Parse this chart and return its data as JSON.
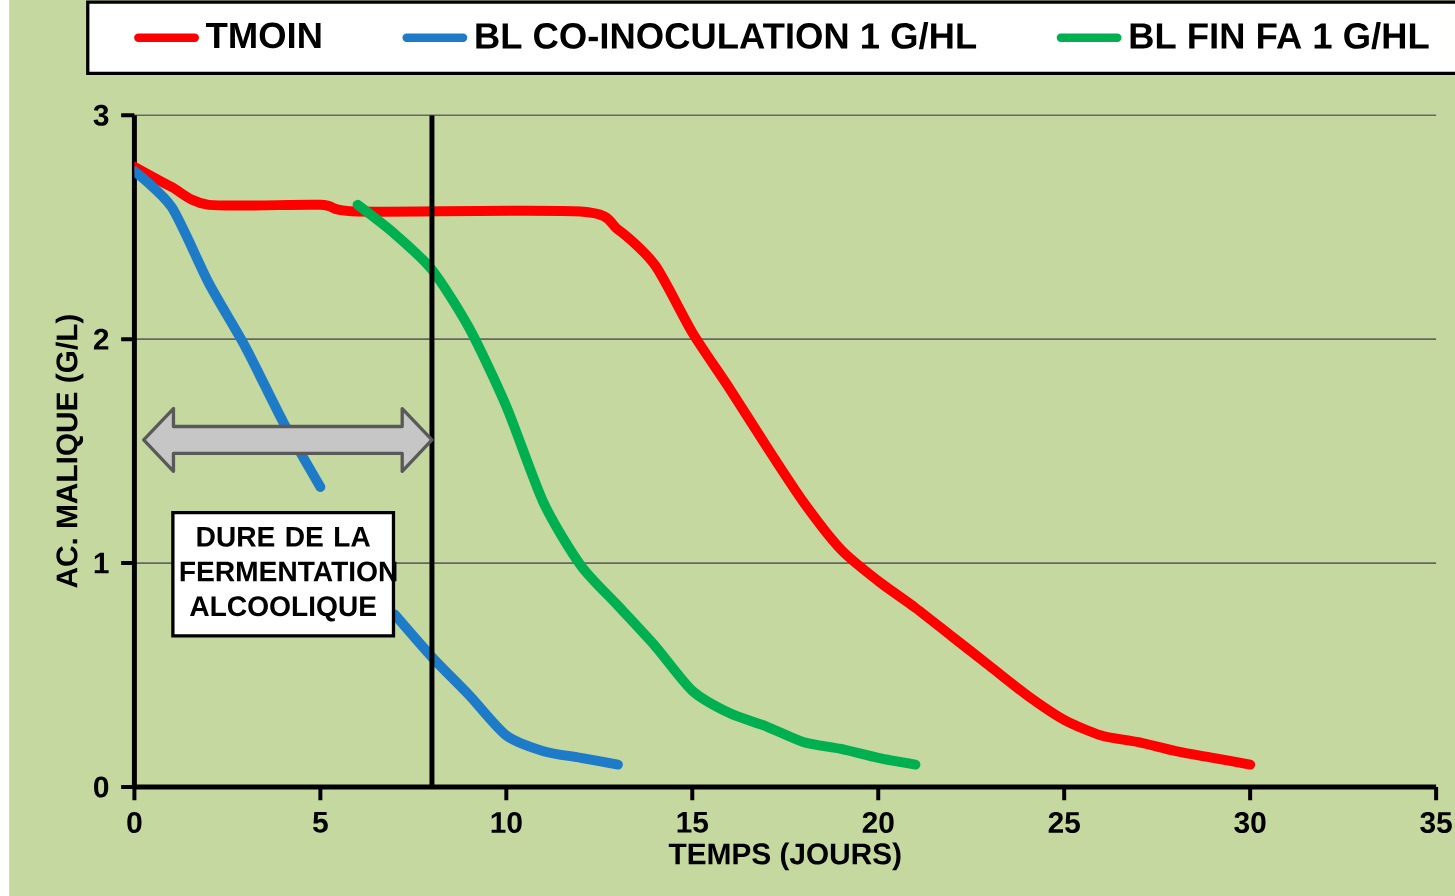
{
  "chart_data": {
    "type": "line",
    "xlabel": "TEMPS (JOURS)",
    "ylabel": "AC. MALIQUE (G/L)",
    "xlim": [
      0,
      35
    ],
    "ylim": [
      0,
      3
    ],
    "xticks": [
      0,
      5,
      10,
      15,
      20,
      25,
      30,
      35
    ],
    "yticks": [
      0,
      1,
      2,
      3
    ],
    "grid": "y",
    "legend": "top",
    "marker": "none",
    "line_style": "solid",
    "series": [
      {
        "name": "TMOIN",
        "color": "#ff0000",
        "x": [
          0,
          1,
          2,
          5,
          6,
          12,
          13,
          14,
          15,
          16,
          17,
          18,
          19,
          20,
          21,
          22,
          23,
          24,
          25,
          26,
          27,
          28,
          29,
          30
        ],
        "values": [
          2.77,
          2.68,
          2.6,
          2.6,
          2.57,
          2.57,
          2.49,
          2.33,
          2.03,
          1.78,
          1.52,
          1.27,
          1.06,
          0.92,
          0.8,
          0.67,
          0.54,
          0.41,
          0.3,
          0.23,
          0.2,
          0.16,
          0.13,
          0.1
        ]
      },
      {
        "name": "BL CO-INOCULATION  1 G/HL",
        "color": "#1e7bc8",
        "x": [
          0,
          1,
          2,
          3,
          4,
          5,
          6,
          7,
          8,
          9,
          10,
          11,
          12,
          13
        ],
        "values": [
          2.75,
          2.59,
          2.25,
          1.96,
          1.63,
          1.34,
          null,
          0.77,
          0.58,
          0.41,
          0.23,
          0.16,
          0.13,
          0.1
        ]
      },
      {
        "name": "BL FIN FA  1 G/HL",
        "color": "#00b050",
        "x": [
          6,
          7,
          8,
          9,
          10,
          11,
          12,
          13,
          14,
          15,
          16,
          17,
          18,
          19,
          20,
          21
        ],
        "values": [
          2.6,
          2.47,
          2.31,
          2.05,
          1.7,
          1.27,
          0.99,
          0.81,
          0.63,
          0.43,
          0.33,
          0.27,
          0.2,
          0.17,
          0.13,
          0.1
        ]
      }
    ],
    "ref_lines": [
      {
        "axis": "x",
        "value": 8,
        "color": "#000000"
      }
    ],
    "annotations": [
      "DURE DE LA FERMENTATION ALCOOLIQUE"
    ]
  }
}
